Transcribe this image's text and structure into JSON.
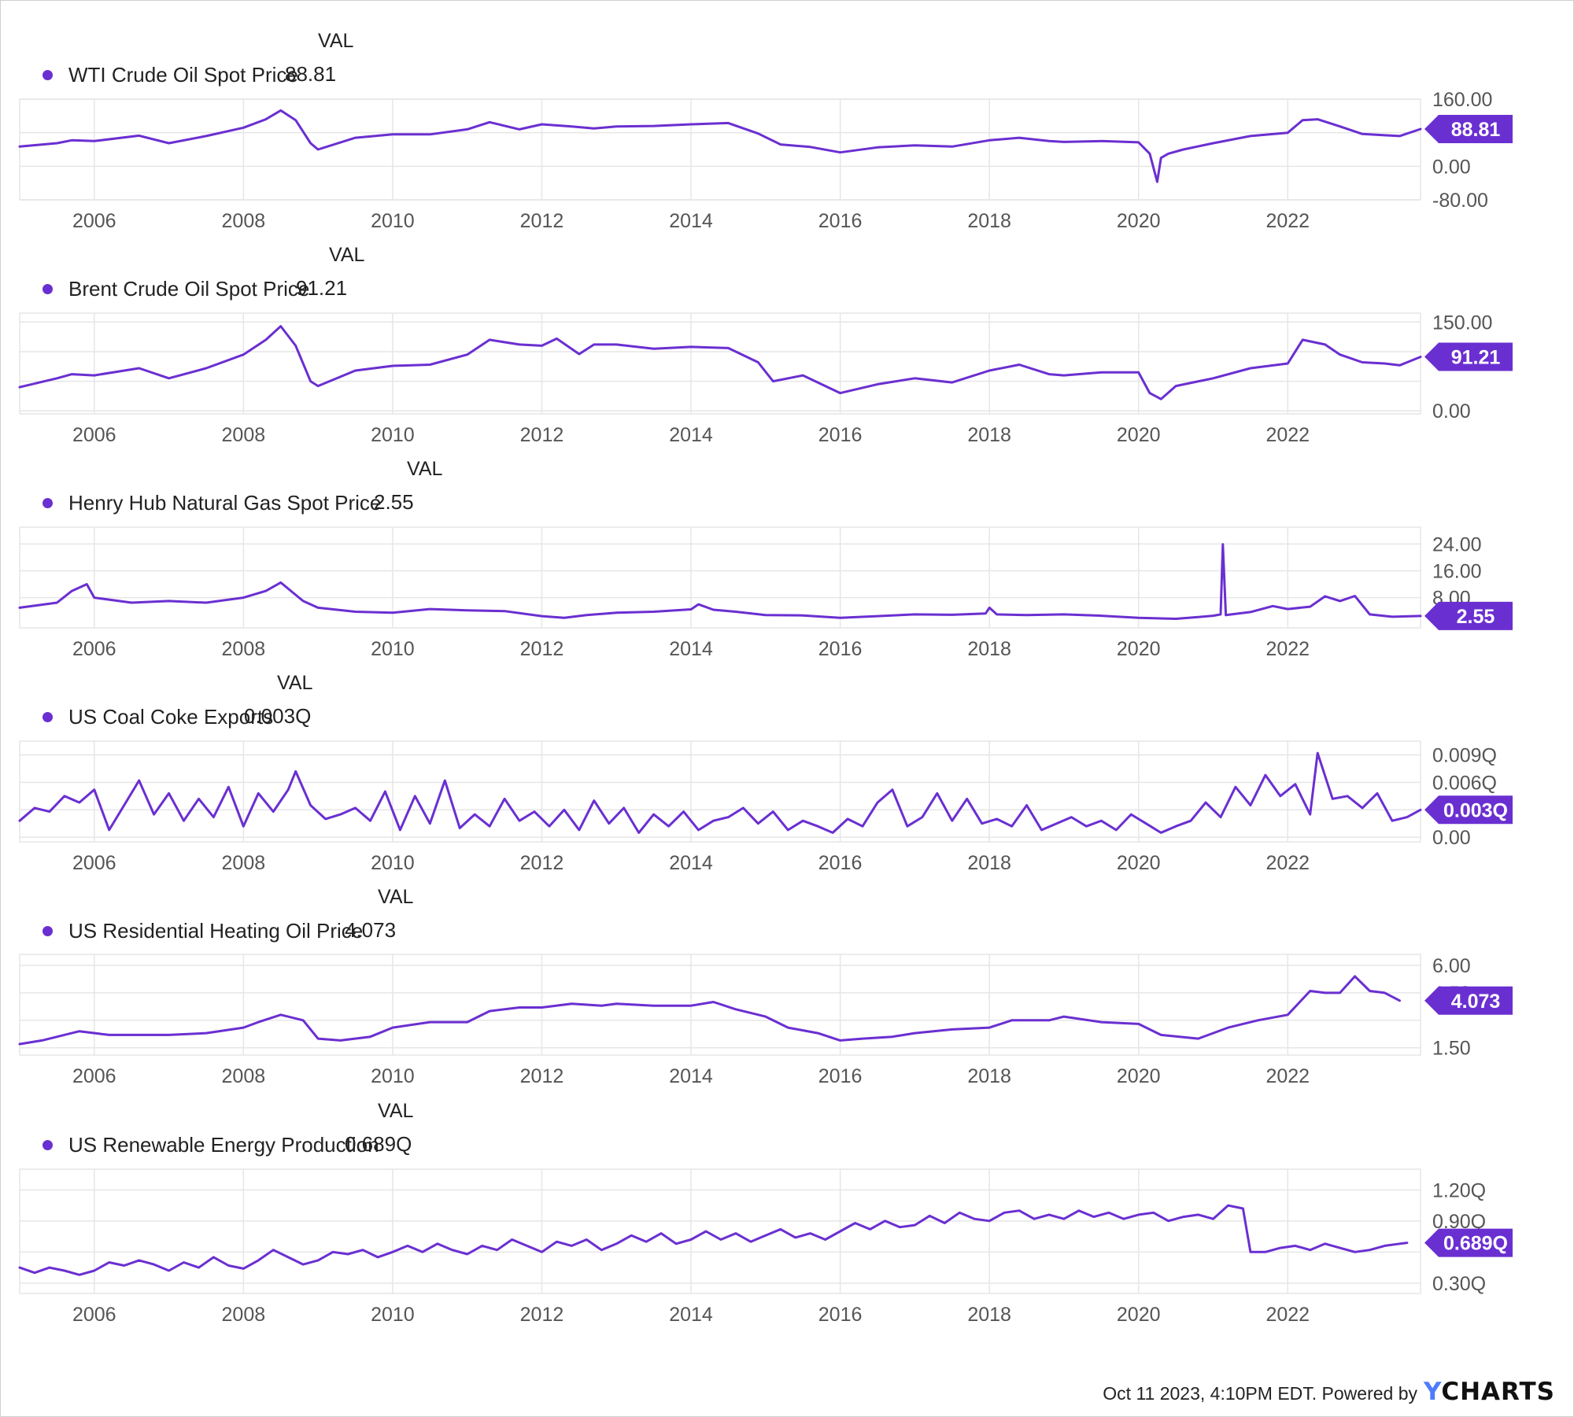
{
  "colors": {
    "series": "#6a2fd1",
    "grid": "#e6e6e6",
    "axis_text": "#555555",
    "badge_text": "#ffffff"
  },
  "footer": {
    "timestamp": "Oct 11 2023, 4:10PM EDT. Powered by",
    "logo_prefix": "Y",
    "logo_rest": "CHARTS"
  },
  "chart_data": [
    {
      "type": "line",
      "val_header": "VAL",
      "series": [
        {
          "name": "WTI Crude Oil Spot Price",
          "current_value": 88.81,
          "current_label": "88.81"
        }
      ],
      "yticks": [
        160,
        80,
        0,
        -80
      ],
      "ytick_labels": [
        "160.00",
        "",
        "0.00",
        "-80.00"
      ],
      "ylim": [
        -80,
        160
      ],
      "xticks": [
        "2006",
        "2008",
        "2010",
        "2012",
        "2014",
        "2016",
        "2018",
        "2020",
        "2022"
      ],
      "xlim": [
        2005.0,
        2023.78
      ],
      "x": [
        2005.0,
        2005.5,
        2005.7,
        2006.0,
        2006.6,
        2007.0,
        2007.5,
        2008.0,
        2008.3,
        2008.5,
        2008.7,
        2008.9,
        2009.0,
        2009.5,
        2010.0,
        2010.5,
        2011.0,
        2011.3,
        2011.7,
        2012.0,
        2012.4,
        2012.7,
        2013.0,
        2013.5,
        2014.0,
        2014.5,
        2014.9,
        2015.2,
        2015.6,
        2016.0,
        2016.5,
        2017.0,
        2017.5,
        2018.0,
        2018.4,
        2018.8,
        2019.0,
        2019.5,
        2020.0,
        2020.15,
        2020.25,
        2020.3,
        2020.4,
        2020.6,
        2021.0,
        2021.5,
        2022.0,
        2022.2,
        2022.4,
        2022.7,
        2023.0,
        2023.3,
        2023.5,
        2023.78
      ],
      "y": [
        47,
        55,
        62,
        60,
        73,
        55,
        72,
        92,
        112,
        133,
        110,
        55,
        40,
        68,
        76,
        76,
        88,
        105,
        88,
        100,
        95,
        90,
        95,
        96,
        100,
        103,
        78,
        52,
        46,
        33,
        45,
        50,
        47,
        62,
        68,
        60,
        58,
        60,
        57,
        30,
        -37,
        20,
        30,
        40,
        55,
        72,
        80,
        110,
        112,
        95,
        77,
        74,
        72,
        88.81
      ]
    },
    {
      "type": "line",
      "val_header": "VAL",
      "series": [
        {
          "name": "Brent Crude Oil Spot Price",
          "current_value": 91.21,
          "current_label": "91.21"
        }
      ],
      "yticks": [
        150,
        100,
        50,
        0
      ],
      "ytick_labels": [
        "150.00",
        "100.00",
        "",
        "0.00"
      ],
      "ylim": [
        -5,
        165
      ],
      "xticks": [
        "2006",
        "2008",
        "2010",
        "2012",
        "2014",
        "2016",
        "2018",
        "2020",
        "2022"
      ],
      "xlim": [
        2005.0,
        2023.78
      ],
      "x": [
        2005.0,
        2005.5,
        2005.7,
        2006.0,
        2006.6,
        2007.0,
        2007.5,
        2008.0,
        2008.3,
        2008.5,
        2008.7,
        2008.9,
        2009.0,
        2009.5,
        2010.0,
        2010.5,
        2011.0,
        2011.3,
        2011.7,
        2012.0,
        2012.2,
        2012.5,
        2012.7,
        2013.0,
        2013.5,
        2014.0,
        2014.5,
        2014.9,
        2015.1,
        2015.5,
        2016.0,
        2016.5,
        2017.0,
        2017.5,
        2018.0,
        2018.4,
        2018.8,
        2019.0,
        2019.5,
        2020.0,
        2020.15,
        2020.3,
        2020.5,
        2021.0,
        2021.5,
        2022.0,
        2022.2,
        2022.5,
        2022.7,
        2023.0,
        2023.3,
        2023.5,
        2023.78
      ],
      "y": [
        40,
        55,
        62,
        60,
        72,
        55,
        72,
        95,
        120,
        143,
        110,
        50,
        42,
        68,
        76,
        78,
        95,
        120,
        112,
        110,
        122,
        96,
        112,
        112,
        105,
        108,
        106,
        82,
        50,
        60,
        30,
        45,
        55,
        48,
        68,
        78,
        62,
        60,
        65,
        65,
        30,
        20,
        42,
        55,
        72,
        80,
        120,
        112,
        95,
        82,
        80,
        77,
        91.21
      ]
    },
    {
      "type": "line",
      "val_header": "VAL",
      "series": [
        {
          "name": "Henry Hub Natural Gas Spot Price",
          "current_value": 2.55,
          "current_label": "2.55"
        }
      ],
      "yticks": [
        24,
        16,
        8
      ],
      "ytick_labels": [
        "24.00",
        "16.00",
        "8.00"
      ],
      "ylim": [
        -1,
        29
      ],
      "xticks": [
        "2006",
        "2008",
        "2010",
        "2012",
        "2014",
        "2016",
        "2018",
        "2020",
        "2022"
      ],
      "xlim": [
        2005.0,
        2023.78
      ],
      "x": [
        2005.0,
        2005.5,
        2005.7,
        2005.9,
        2006.0,
        2006.5,
        2007.0,
        2007.5,
        2008.0,
        2008.3,
        2008.5,
        2008.8,
        2009.0,
        2009.5,
        2010.0,
        2010.5,
        2011.0,
        2011.5,
        2012.0,
        2012.3,
        2012.6,
        2013.0,
        2013.5,
        2014.0,
        2014.1,
        2014.3,
        2014.6,
        2015.0,
        2015.5,
        2016.0,
        2016.5,
        2017.0,
        2017.5,
        2017.95,
        2018.0,
        2018.1,
        2018.5,
        2019.0,
        2019.5,
        2020.0,
        2020.5,
        2020.8,
        2021.0,
        2021.1,
        2021.13,
        2021.17,
        2021.5,
        2021.8,
        2022.0,
        2022.3,
        2022.5,
        2022.7,
        2022.9,
        2023.1,
        2023.4,
        2023.78
      ],
      "y": [
        5,
        6.5,
        10,
        12,
        8,
        6.5,
        7,
        6.5,
        8,
        10,
        12.5,
        7,
        5,
        3.8,
        3.5,
        4.6,
        4.2,
        4,
        2.5,
        2,
        2.8,
        3.5,
        3.8,
        4.5,
        6,
        4.4,
        3.8,
        2.8,
        2.7,
        2,
        2.5,
        3,
        2.9,
        3.3,
        5,
        3,
        2.8,
        3,
        2.6,
        2,
        1.7,
        2.2,
        2.6,
        3,
        23.9,
        2.8,
        3.7,
        5.5,
        4.6,
        5.3,
        8.4,
        7,
        8.5,
        3,
        2.3,
        2.55
      ]
    },
    {
      "type": "line",
      "val_header": "VAL",
      "series": [
        {
          "name": "US Coal Coke Exports",
          "current_value": 0.003,
          "current_label": "0.003Q"
        }
      ],
      "yticks": [
        0.009,
        0.006,
        0.003,
        0
      ],
      "ytick_labels": [
        "0.009Q",
        "0.006Q",
        "",
        "0.00"
      ],
      "ylim": [
        -0.0005,
        0.0105
      ],
      "xticks": [
        "2006",
        "2008",
        "2010",
        "2012",
        "2014",
        "2016",
        "2018",
        "2020",
        "2022"
      ],
      "xlim": [
        2005.0,
        2023.78
      ],
      "x": [
        2005.0,
        2005.2,
        2005.4,
        2005.6,
        2005.8,
        2006.0,
        2006.2,
        2006.4,
        2006.6,
        2006.8,
        2007.0,
        2007.2,
        2007.4,
        2007.6,
        2007.8,
        2008.0,
        2008.2,
        2008.4,
        2008.6,
        2008.7,
        2008.9,
        2009.1,
        2009.3,
        2009.5,
        2009.7,
        2009.9,
        2010.1,
        2010.3,
        2010.5,
        2010.7,
        2010.9,
        2011.1,
        2011.3,
        2011.5,
        2011.7,
        2011.9,
        2012.1,
        2012.3,
        2012.5,
        2012.7,
        2012.9,
        2013.1,
        2013.3,
        2013.5,
        2013.7,
        2013.9,
        2014.1,
        2014.3,
        2014.5,
        2014.7,
        2014.9,
        2015.1,
        2015.3,
        2015.5,
        2015.7,
        2015.9,
        2016.1,
        2016.3,
        2016.5,
        2016.7,
        2016.9,
        2017.1,
        2017.3,
        2017.5,
        2017.7,
        2017.9,
        2018.1,
        2018.3,
        2018.5,
        2018.7,
        2018.9,
        2019.1,
        2019.3,
        2019.5,
        2019.7,
        2019.9,
        2020.1,
        2020.3,
        2020.5,
        2020.7,
        2020.9,
        2021.1,
        2021.3,
        2021.5,
        2021.7,
        2021.9,
        2022.1,
        2022.3,
        2022.4,
        2022.6,
        2022.8,
        2023.0,
        2023.2,
        2023.4,
        2023.6,
        2023.78
      ],
      "y": [
        0.0018,
        0.0032,
        0.0028,
        0.0045,
        0.0038,
        0.0052,
        0.0008,
        0.0035,
        0.0062,
        0.0025,
        0.0048,
        0.0018,
        0.0042,
        0.0022,
        0.0055,
        0.0012,
        0.0048,
        0.0028,
        0.0052,
        0.0072,
        0.0035,
        0.002,
        0.0025,
        0.0032,
        0.0018,
        0.005,
        0.0008,
        0.0045,
        0.0015,
        0.0062,
        0.001,
        0.0025,
        0.0012,
        0.0042,
        0.0018,
        0.0028,
        0.0012,
        0.003,
        0.0008,
        0.004,
        0.0015,
        0.0032,
        0.0005,
        0.0025,
        0.0012,
        0.0028,
        0.0008,
        0.0018,
        0.0022,
        0.0032,
        0.0015,
        0.0028,
        0.0008,
        0.0018,
        0.0012,
        0.0005,
        0.002,
        0.0012,
        0.0038,
        0.0052,
        0.0012,
        0.0022,
        0.0048,
        0.0018,
        0.0042,
        0.0015,
        0.002,
        0.0012,
        0.0035,
        0.0008,
        0.0015,
        0.0022,
        0.0012,
        0.0018,
        0.0008,
        0.0025,
        0.0015,
        0.0005,
        0.0012,
        0.0018,
        0.0038,
        0.0022,
        0.0055,
        0.0035,
        0.0068,
        0.0045,
        0.0058,
        0.0025,
        0.0092,
        0.0042,
        0.0045,
        0.0032,
        0.0048,
        0.0018,
        0.0022,
        0.003
      ]
    },
    {
      "type": "line",
      "val_header": "VAL",
      "series": [
        {
          "name": "US Residential Heating Oil Price",
          "current_value": 4.073,
          "current_label": "4.073"
        }
      ],
      "yticks": [
        6,
        4.5,
        3,
        1.5
      ],
      "ytick_labels": [
        "6.00",
        "4.50",
        "",
        "1.50"
      ],
      "ylim": [
        1.1,
        6.6
      ],
      "xticks": [
        "2006",
        "2008",
        "2010",
        "2012",
        "2014",
        "2016",
        "2018",
        "2020",
        "2022"
      ],
      "xlim": [
        2005.0,
        2023.78
      ],
      "x": [
        2005.0,
        2005.3,
        2005.8,
        2006.2,
        2006.5,
        2007.0,
        2007.5,
        2008.0,
        2008.2,
        2008.5,
        2008.8,
        2009.0,
        2009.3,
        2009.7,
        2010.0,
        2010.5,
        2011.0,
        2011.3,
        2011.7,
        2012.0,
        2012.4,
        2012.8,
        2013.0,
        2013.5,
        2014.0,
        2014.3,
        2014.6,
        2015.0,
        2015.3,
        2015.7,
        2016.0,
        2016.3,
        2016.7,
        2017.0,
        2017.5,
        2018.0,
        2018.3,
        2018.8,
        2019.0,
        2019.5,
        2020.0,
        2020.3,
        2020.8,
        2021.2,
        2021.6,
        2022.0,
        2022.3,
        2022.5,
        2022.7,
        2022.9,
        2023.1,
        2023.3,
        2023.5
      ],
      "y": [
        1.7,
        1.9,
        2.4,
        2.2,
        2.2,
        2.2,
        2.3,
        2.6,
        2.9,
        3.3,
        3.0,
        2.0,
        1.9,
        2.1,
        2.6,
        2.9,
        2.9,
        3.5,
        3.7,
        3.7,
        3.9,
        3.8,
        3.9,
        3.8,
        3.8,
        4.0,
        3.6,
        3.2,
        2.6,
        2.3,
        1.9,
        2.0,
        2.1,
        2.3,
        2.5,
        2.6,
        3.0,
        3.0,
        3.2,
        2.9,
        2.8,
        2.2,
        2.0,
        2.6,
        3.0,
        3.3,
        4.6,
        4.5,
        4.5,
        5.4,
        4.6,
        4.5,
        4.073
      ]
    },
    {
      "type": "line",
      "val_header": "VAL",
      "series": [
        {
          "name": "US Renewable Energy Production",
          "current_value": 0.689,
          "current_label": "0.689Q"
        }
      ],
      "yticks": [
        1.2,
        0.9,
        0.6,
        0.3
      ],
      "ytick_labels": [
        "1.20Q",
        "0.90Q",
        "",
        "0.30Q"
      ],
      "ylim": [
        0.2,
        1.4
      ],
      "xticks": [
        "2006",
        "2008",
        "2010",
        "2012",
        "2014",
        "2016",
        "2018",
        "2020",
        "2022"
      ],
      "xlim": [
        2005.0,
        2023.78
      ],
      "x": [
        2005.0,
        2005.2,
        2005.4,
        2005.6,
        2005.8,
        2006.0,
        2006.2,
        2006.4,
        2006.6,
        2006.8,
        2007.0,
        2007.2,
        2007.4,
        2007.6,
        2007.8,
        2008.0,
        2008.2,
        2008.4,
        2008.6,
        2008.8,
        2009.0,
        2009.2,
        2009.4,
        2009.6,
        2009.8,
        2010.0,
        2010.2,
        2010.4,
        2010.6,
        2010.8,
        2011.0,
        2011.2,
        2011.4,
        2011.6,
        2011.8,
        2012.0,
        2012.2,
        2012.4,
        2012.6,
        2012.8,
        2013.0,
        2013.2,
        2013.4,
        2013.6,
        2013.8,
        2014.0,
        2014.2,
        2014.4,
        2014.6,
        2014.8,
        2015.0,
        2015.2,
        2015.4,
        2015.6,
        2015.8,
        2016.0,
        2016.2,
        2016.4,
        2016.6,
        2016.8,
        2017.0,
        2017.2,
        2017.4,
        2017.6,
        2017.8,
        2018.0,
        2018.2,
        2018.4,
        2018.6,
        2018.8,
        2019.0,
        2019.2,
        2019.4,
        2019.6,
        2019.8,
        2020.0,
        2020.2,
        2020.4,
        2020.6,
        2020.8,
        2021.0,
        2021.2,
        2021.4,
        2021.5,
        2021.7,
        2021.9,
        2022.1,
        2022.3,
        2022.5,
        2022.7,
        2022.9,
        2023.1,
        2023.3,
        2023.5,
        2023.6
      ],
      "y": [
        0.45,
        0.4,
        0.45,
        0.42,
        0.38,
        0.42,
        0.5,
        0.47,
        0.52,
        0.48,
        0.42,
        0.5,
        0.45,
        0.55,
        0.47,
        0.44,
        0.52,
        0.62,
        0.55,
        0.48,
        0.52,
        0.6,
        0.58,
        0.62,
        0.55,
        0.6,
        0.66,
        0.6,
        0.68,
        0.62,
        0.58,
        0.66,
        0.62,
        0.72,
        0.66,
        0.6,
        0.7,
        0.66,
        0.72,
        0.62,
        0.68,
        0.76,
        0.7,
        0.78,
        0.68,
        0.72,
        0.8,
        0.72,
        0.78,
        0.7,
        0.76,
        0.82,
        0.74,
        0.78,
        0.72,
        0.8,
        0.88,
        0.82,
        0.9,
        0.84,
        0.86,
        0.95,
        0.88,
        0.98,
        0.92,
        0.9,
        0.98,
        1.0,
        0.92,
        0.96,
        0.92,
        1.0,
        0.94,
        0.98,
        0.92,
        0.96,
        0.98,
        0.9,
        0.94,
        0.96,
        0.92,
        1.05,
        1.02,
        0.6,
        0.6,
        0.64,
        0.66,
        0.62,
        0.68,
        0.64,
        0.6,
        0.62,
        0.66,
        0.68,
        0.689
      ]
    }
  ]
}
